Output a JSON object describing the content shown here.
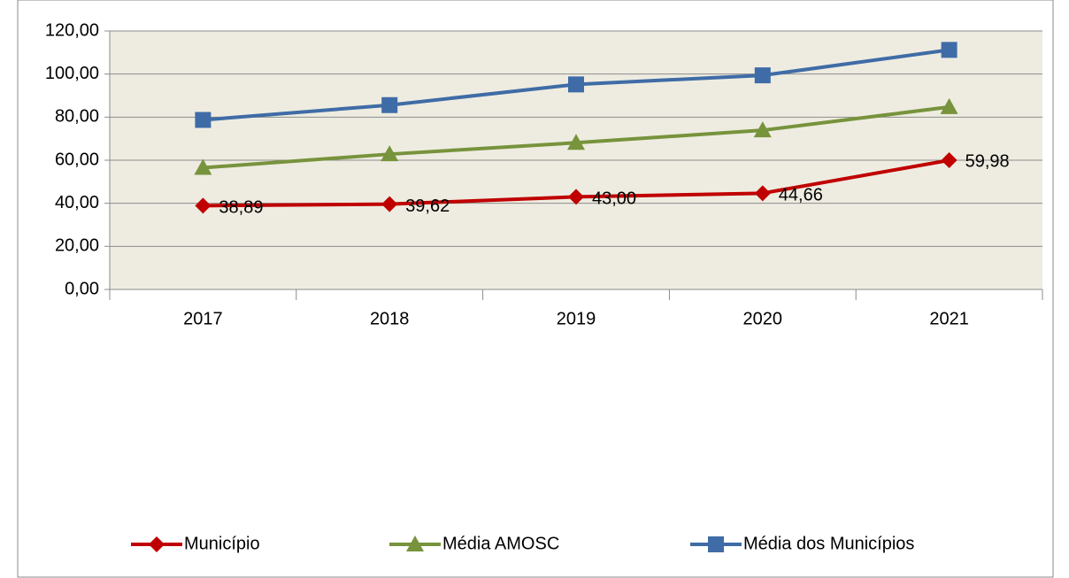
{
  "chart_data": {
    "type": "line",
    "categories": [
      "2017",
      "2018",
      "2019",
      "2020",
      "2021"
    ],
    "series": [
      {
        "name": "Município",
        "color": "#c00000",
        "marker": "diamond",
        "values": [
          38.89,
          39.62,
          43.0,
          44.66,
          59.98
        ],
        "value_labels": [
          "38,89",
          "39,62",
          "43,00",
          "44,66",
          "59,98"
        ]
      },
      {
        "name": "Média AMOSC",
        "color": "#77933c",
        "marker": "triangle",
        "values": [
          56.5,
          62.8,
          68.1,
          73.9,
          84.7
        ]
      },
      {
        "name": "Média dos Municípios",
        "color": "#3f6ca6",
        "marker": "square",
        "values": [
          78.7,
          85.6,
          95.2,
          99.4,
          111.2
        ]
      }
    ],
    "ylim": [
      0,
      120
    ],
    "yticks": [
      {
        "value": 0,
        "label": "0,00"
      },
      {
        "value": 20,
        "label": "20,00"
      },
      {
        "value": 40,
        "label": "40,00"
      },
      {
        "value": 60,
        "label": "60,00"
      },
      {
        "value": 80,
        "label": "80,00"
      },
      {
        "value": 100,
        "label": "100,00"
      },
      {
        "value": 120,
        "label": "120,00"
      }
    ],
    "grid": true,
    "legend": "bottom"
  }
}
